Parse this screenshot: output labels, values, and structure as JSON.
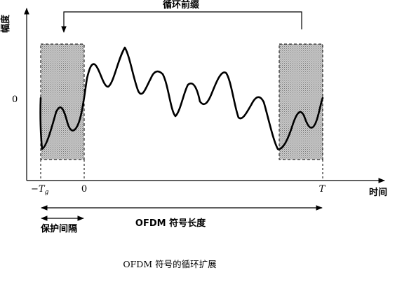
{
  "labels": {
    "cyclic_prefix": "循环前缀",
    "amplitude": "幅度",
    "zero_y": "0",
    "neg_tg_prefix": "−T",
    "neg_tg_sub": "g",
    "zero_x": "0",
    "t_label": "T",
    "time": "时间",
    "ofdm_length": "OFDM 符号长度",
    "guard_interval": "保护间隔"
  },
  "caption": "OFDM 符号的循环扩展",
  "colors": {
    "ink": "#000000",
    "shade": "#b8b8b8",
    "background": "#ffffff"
  }
}
